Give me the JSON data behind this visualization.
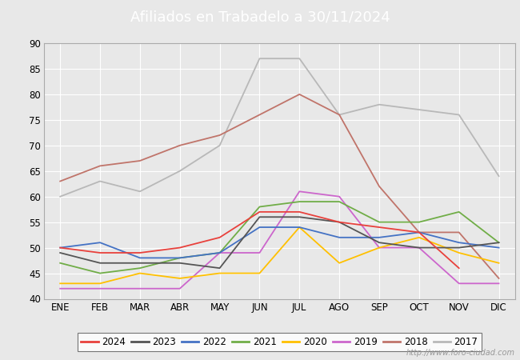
{
  "title": "Afiliados en Trabadelo a 30/11/2024",
  "title_color": "#ffffff",
  "title_bg_color": "#4472c4",
  "ylim": [
    40,
    90
  ],
  "yticks": [
    40,
    45,
    50,
    55,
    60,
    65,
    70,
    75,
    80,
    85,
    90
  ],
  "months": [
    "ENE",
    "FEB",
    "MAR",
    "ABR",
    "MAY",
    "JUN",
    "JUL",
    "AGO",
    "SEP",
    "OCT",
    "NOV",
    "DIC"
  ],
  "series": {
    "2024": {
      "color": "#e8413c",
      "data": [
        50,
        49,
        49,
        50,
        52,
        57,
        57,
        55,
        54,
        53,
        46,
        null
      ]
    },
    "2023": {
      "color": "#555555",
      "data": [
        49,
        47,
        47,
        47,
        46,
        56,
        56,
        55,
        51,
        50,
        50,
        51
      ]
    },
    "2022": {
      "color": "#4472c4",
      "data": [
        50,
        51,
        48,
        48,
        49,
        54,
        54,
        52,
        52,
        53,
        51,
        50
      ]
    },
    "2021": {
      "color": "#70ad47",
      "data": [
        47,
        45,
        46,
        48,
        49,
        58,
        59,
        59,
        55,
        55,
        57,
        51
      ]
    },
    "2020": {
      "color": "#ffc000",
      "data": [
        43,
        43,
        45,
        44,
        45,
        45,
        54,
        47,
        50,
        52,
        49,
        47
      ]
    },
    "2019": {
      "color": "#cc66cc",
      "data": [
        42,
        42,
        42,
        42,
        49,
        49,
        61,
        60,
        50,
        50,
        43,
        43
      ]
    },
    "2018": {
      "color": "#c0746a",
      "data": [
        63,
        66,
        67,
        70,
        72,
        76,
        80,
        76,
        62,
        53,
        53,
        44
      ]
    },
    "2017": {
      "color": "#b8b8b8",
      "data": [
        60,
        63,
        61,
        65,
        70,
        87,
        87,
        76,
        78,
        77,
        76,
        64
      ]
    }
  },
  "watermark": "http://www.foro-ciudad.com",
  "fig_bg_color": "#e8e8e8",
  "plot_bg_color": "#e8e8e8",
  "grid_color": "#ffffff",
  "series_order": [
    "2017",
    "2018",
    "2019",
    "2020",
    "2021",
    "2022",
    "2023",
    "2024"
  ],
  "legend_order": [
    "2024",
    "2023",
    "2022",
    "2021",
    "2020",
    "2019",
    "2018",
    "2017"
  ]
}
